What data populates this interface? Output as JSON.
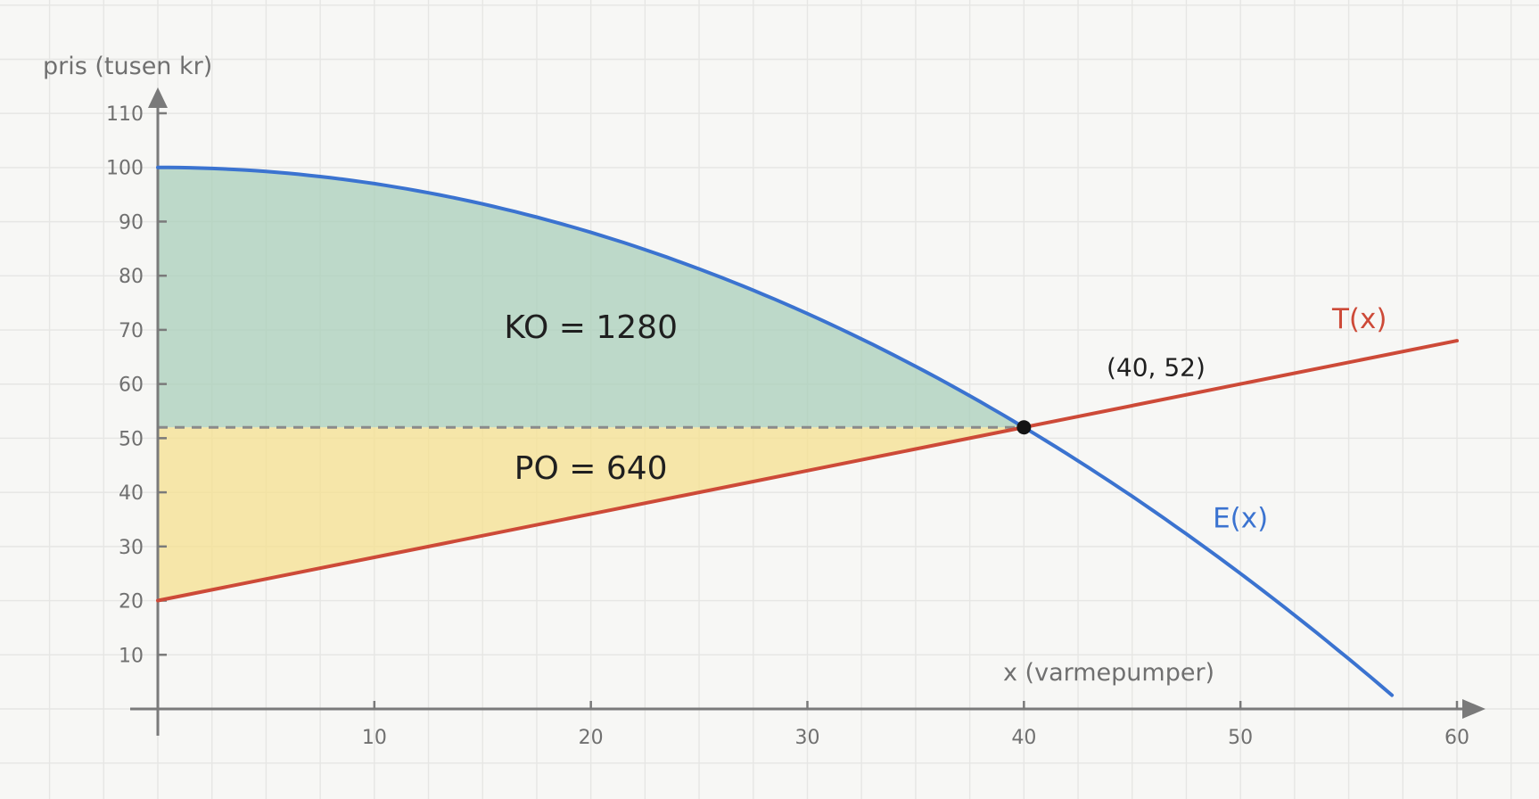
{
  "chart_data": {
    "type": "line",
    "xlabel": "x (varmepumper)",
    "ylabel": "pris (tusen kr)",
    "xlim": [
      0,
      60
    ],
    "ylim": [
      0,
      110
    ],
    "x_ticks": [
      10,
      20,
      30,
      40,
      50,
      60
    ],
    "y_ticks": [
      10,
      20,
      30,
      40,
      50,
      60,
      70,
      80,
      90,
      100,
      110
    ],
    "grid": true,
    "series": [
      {
        "name": "E(x)",
        "color": "#3b73d0",
        "domain": [
          0,
          57
        ],
        "points": [
          {
            "x": 0,
            "y": 100
          },
          {
            "x": 5,
            "y": 99.25
          },
          {
            "x": 10,
            "y": 97
          },
          {
            "x": 15,
            "y": 93.25
          },
          {
            "x": 20,
            "y": 88
          },
          {
            "x": 25,
            "y": 81.25
          },
          {
            "x": 30,
            "y": 73
          },
          {
            "x": 35,
            "y": 63.25
          },
          {
            "x": 40,
            "y": 52
          },
          {
            "x": 45,
            "y": 39.25
          },
          {
            "x": 50,
            "y": 25
          },
          {
            "x": 55,
            "y": 9.25
          },
          {
            "x": 57,
            "y": 2.5
          }
        ]
      },
      {
        "name": "T(x)",
        "color": "#cd4a38",
        "domain": [
          0,
          60
        ],
        "points": [
          {
            "x": 0,
            "y": 20
          },
          {
            "x": 10,
            "y": 28
          },
          {
            "x": 20,
            "y": 36
          },
          {
            "x": 30,
            "y": 44
          },
          {
            "x": 40,
            "y": 52
          },
          {
            "x": 50,
            "y": 60
          },
          {
            "x": 60,
            "y": 68
          }
        ]
      }
    ],
    "equilibrium": {
      "x": 40,
      "y": 52,
      "label": "(40, 52)"
    },
    "areas": [
      {
        "name": "KO",
        "label": "KO = 1280",
        "value": 1280,
        "color": "#a9cfb9",
        "between": [
          "E(x)",
          "y=52"
        ],
        "x_range": [
          0,
          40
        ]
      },
      {
        "name": "PO",
        "label": "PO = 640",
        "value": 640,
        "color": "#f5e08f",
        "between": [
          "y=52",
          "T(x)"
        ],
        "x_range": [
          0,
          40
        ]
      }
    ],
    "reference_lines": [
      {
        "y": 52,
        "style": "dashed",
        "x_range": [
          0,
          40
        ]
      }
    ]
  }
}
